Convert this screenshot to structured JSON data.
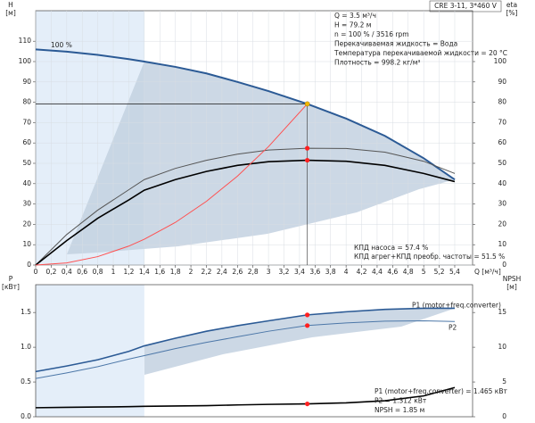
{
  "chart_data": [
    {
      "type": "line",
      "title": "CRE 3-11, 3*460 V",
      "ylabel": [
        "H",
        "[м]"
      ],
      "y2label": [
        "eta",
        "[%]"
      ],
      "xlabel": "Q [м³/ч]",
      "curve_label": "100 %",
      "annotations": [
        "Q = 3.5 м³/ч",
        "H = 79.2 м",
        "n = 100 % / 3516 rpm",
        "Перекачиваемая жидкость = Вода",
        "Температура перекачиваемой жидкости = 20 °C",
        "Плотность = 998.2 кг/м³"
      ],
      "notes": [
        "КПД насоса = 57.4 %",
        "КПД агрег+КПД преобр. частоты = 51.5 %"
      ],
      "x": [
        0,
        0.4,
        0.8,
        1.2,
        1.4,
        1.8,
        2.2,
        2.6,
        3.0,
        3.5,
        4.0,
        4.5,
        5.0,
        5.4
      ],
      "xlim": [
        0,
        5.63
      ],
      "xticks": [
        0,
        {
          "value": 0.2,
          "label": "0,2"
        },
        {
          "value": 0.4,
          "label": "0,4"
        },
        {
          "value": 0.6,
          "label": "0,6"
        },
        {
          "value": 0.8,
          "label": "0,8"
        },
        1,
        {
          "value": 1.2,
          "label": "1,2"
        },
        {
          "value": 1.4,
          "label": "1,4"
        },
        {
          "value": 1.6,
          "label": "1,6"
        },
        {
          "value": 1.8,
          "label": "1,8"
        },
        2,
        {
          "value": 2.2,
          "label": "2,2"
        },
        {
          "value": 2.4,
          "label": "2,4"
        },
        {
          "value": 2.6,
          "label": "2,6"
        },
        {
          "value": 2.8,
          "label": "2,8"
        },
        3,
        {
          "value": 3.2,
          "label": "3,2"
        },
        {
          "value": 3.4,
          "label": "3,4"
        },
        {
          "value": 3.6,
          "label": "3,6"
        },
        {
          "value": 3.8,
          "label": "3,8"
        },
        4,
        {
          "value": 4.2,
          "label": "4,2"
        },
        {
          "value": 4.4,
          "label": "4,4"
        },
        {
          "value": 4.6,
          "label": "4,6"
        },
        {
          "value": 4.8,
          "label": "4,8"
        },
        5,
        {
          "value": 5.2,
          "label": "5,2"
        },
        {
          "value": 5.4,
          "label": "5,4"
        }
      ],
      "ylim": [
        0,
        125
      ],
      "yticks": [
        0,
        10,
        20,
        30,
        40,
        50,
        60,
        70,
        80,
        90,
        100,
        110
      ],
      "y2lim": [
        0,
        125
      ],
      "y2ticks": [
        0,
        10,
        20,
        30,
        40,
        50,
        60,
        70,
        80,
        90,
        100
      ],
      "grid": true,
      "guides": true,
      "series": [
        {
          "color": "#2b5a95",
          "width": 2,
          "values": [
            106,
            104.9,
            103.3,
            101.2,
            100,
            97.4,
            94.2,
            90.0,
            85.5,
            79.2,
            72,
            63.5,
            52.5,
            42
          ]
        },
        {
          "color": "#555555",
          "width": 1,
          "axis": "y2",
          "values": [
            0,
            15,
            27,
            37,
            42,
            47.5,
            51.5,
            54.5,
            56.5,
            57.4,
            57.3,
            55.5,
            51,
            45
          ]
        },
        {
          "color": "#000000",
          "width": 1.6,
          "axis": "y2",
          "values": [
            0,
            12,
            23,
            32,
            36.8,
            42,
            46,
            49,
            50.8,
            51.5,
            51,
            49,
            45,
            41
          ]
        },
        {
          "color": "#ff5050",
          "width": 1,
          "values": [
            0,
            1.03,
            4.14,
            9.31,
            12.67,
            20.95,
            31.3,
            43.7,
            58.2,
            79.2,
            null,
            null,
            null,
            null
          ]
        }
      ],
      "operating_point": {
        "x": 3.5,
        "values": [
          79.2,
          57.4,
          51.5
        ],
        "axes": [
          "y",
          "y2",
          "y2"
        ],
        "colors": [
          "#f2b800",
          "#ff2020",
          "#ff2020"
        ]
      }
    },
    {
      "type": "line",
      "ylabel": [
        "P",
        "[кВт]"
      ],
      "y2label": [
        "NPSH",
        "[м]"
      ],
      "annotations": [
        "P1 (motor+freq.converter) = 1.465 кВт",
        "P2 = 1.312 кВт",
        "NPSH = 1.85 м"
      ],
      "x": [
        0,
        0.4,
        0.8,
        1.2,
        1.4,
        1.8,
        2.2,
        2.6,
        3.0,
        3.5,
        4.0,
        4.5,
        5.0,
        5.4
      ],
      "xlim": [
        0,
        5.63
      ],
      "ylim": [
        0,
        1.9
      ],
      "yticks": [
        {
          "value": 0,
          "label": "0.0"
        },
        0.5,
        {
          "value": 1,
          "label": "1.0"
        },
        1.5
      ],
      "y2lim": [
        0,
        19
      ],
      "y2ticks": [
        0,
        5,
        10,
        15
      ],
      "grid": false,
      "guides": false,
      "series": [
        {
          "name": "P1 (motor+freq.converter)",
          "color": "#2b5a95",
          "width": 1.6,
          "values": [
            0.65,
            0.73,
            0.82,
            0.94,
            1.02,
            1.13,
            1.23,
            1.31,
            1.38,
            1.465,
            1.51,
            1.545,
            1.56,
            1.56
          ]
        },
        {
          "name": "P2",
          "color": "#4c77a8",
          "width": 1,
          "values": [
            0.55,
            0.63,
            0.72,
            0.83,
            0.88,
            0.98,
            1.07,
            1.15,
            1.23,
            1.312,
            1.35,
            1.375,
            1.38,
            1.37
          ]
        },
        {
          "color": "#000000",
          "width": 1.6,
          "axis": "y2",
          "values": [
            1.3,
            1.35,
            1.4,
            1.45,
            1.5,
            1.55,
            1.6,
            1.7,
            1.78,
            1.85,
            2.0,
            2.3,
            3.0,
            4.2
          ]
        }
      ],
      "operating_point": {
        "x": 3.5,
        "values": [
          1.465,
          1.312,
          1.85
        ],
        "axes": [
          "y",
          "y",
          "y2"
        ],
        "colors": [
          "#ff2020",
          "#ff2020",
          "#ff2020"
        ]
      }
    }
  ]
}
